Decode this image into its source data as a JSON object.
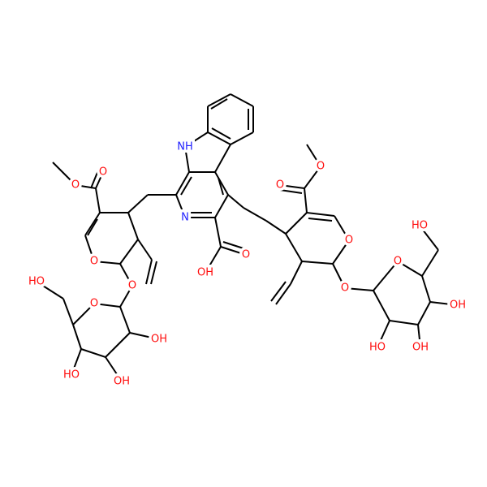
{
  "labels": [
    "NH",
    "N",
    "O",
    "O",
    "O",
    "O",
    "O",
    "HO",
    "OH",
    "HO",
    "OH",
    "OH",
    "O",
    "O",
    "O",
    "O",
    "O",
    "O",
    "HO",
    "OH",
    "OH",
    "HO"
  ]
}
